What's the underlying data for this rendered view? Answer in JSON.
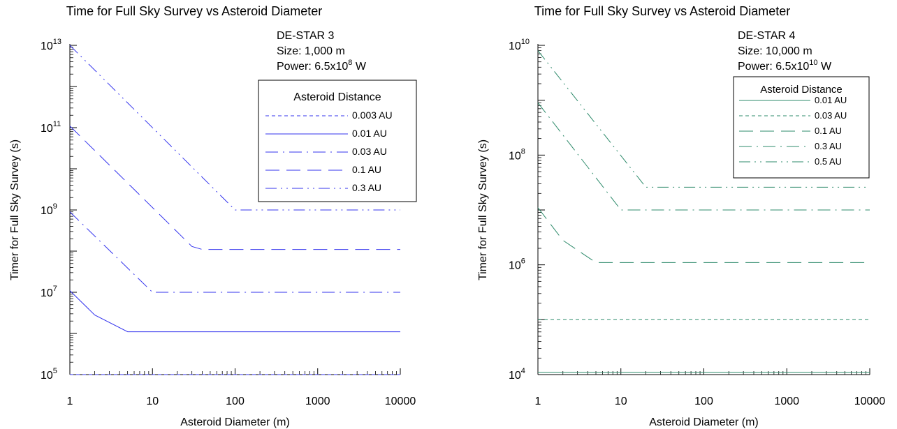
{
  "chart_data": [
    {
      "type": "line",
      "title": "Time for Full Sky Survey vs Asteroid Diameter",
      "xlabel": "Asteroid Diameter (m)",
      "ylabel": "Timer for Full Sky Survey (s)",
      "x_scale": "log",
      "y_scale": "log",
      "xlim": [
        1,
        10000
      ],
      "ylim": [
        100000,
        10000000000000
      ],
      "x_ticks": [
        "1",
        "10",
        "100",
        "1000",
        "10000"
      ],
      "y_ticks": [
        {
          "base": "10",
          "exp": "5"
        },
        {
          "base": "10",
          "exp": "7"
        },
        {
          "base": "10",
          "exp": "9"
        },
        {
          "base": "10",
          "exp": "11"
        },
        {
          "base": "10",
          "exp": "13"
        }
      ],
      "info": {
        "line1": "DE-STAR 3",
        "line2": "Size: 1,000 m",
        "power_prefix": "Power: 6.5x10",
        "power_exp": "8",
        "power_suffix": " W"
      },
      "legend_title": "Asteroid Distance",
      "legend_position": "top-right",
      "line_color": "#3333ee",
      "series": [
        {
          "name": "0.003 AU",
          "dash": "short-dash",
          "points": [
            [
              1,
              100000
            ],
            [
              10000,
              100000
            ]
          ]
        },
        {
          "name": "0.01 AU",
          "dash": "solid",
          "points": [
            [
              1,
              11000000
            ],
            [
              2,
              2800000
            ],
            [
              5,
              1100000
            ],
            [
              10000,
              1100000
            ]
          ]
        },
        {
          "name": "0.03 AU",
          "dash": "dash-dot",
          "points": [
            [
              1,
              900000000
            ],
            [
              10,
              10000000
            ],
            [
              10000,
              10000000
            ]
          ]
        },
        {
          "name": "0.1 AU",
          "dash": "long-dash",
          "points": [
            [
              1,
              110000000000
            ],
            [
              30,
              130000000
            ],
            [
              40,
              110000000
            ],
            [
              10000,
              110000000
            ]
          ]
        },
        {
          "name": "0.3 AU",
          "dash": "dash-dot-dot",
          "points": [
            [
              1,
              10000000000000
            ],
            [
              100,
              1000000000
            ],
            [
              10000,
              1000000000
            ]
          ]
        }
      ]
    },
    {
      "type": "line",
      "title": "Time for Full Sky Survey vs Asteroid Diameter",
      "xlabel": "Asteroid Diameter (m)",
      "ylabel": "Timer for Full Sky Survey (s)",
      "x_scale": "log",
      "y_scale": "log",
      "xlim": [
        1,
        10000
      ],
      "ylim": [
        10000,
        10000000000
      ],
      "x_ticks": [
        "1",
        "10",
        "100",
        "1000",
        "10000"
      ],
      "y_ticks": [
        {
          "base": "10",
          "exp": "4"
        },
        {
          "base": "10",
          "exp": "6"
        },
        {
          "base": "10",
          "exp": "8"
        },
        {
          "base": "10",
          "exp": "10"
        }
      ],
      "info": {
        "line1": "DE-STAR 4",
        "line2": "Size: 10,000 m",
        "power_prefix": "Power: 6.5x10",
        "power_exp": "10",
        "power_suffix": " W"
      },
      "legend_title": "Asteroid Distance",
      "legend_position": "top-right",
      "line_color": "#2e8b6b",
      "series": [
        {
          "name": "0.01 AU",
          "dash": "solid",
          "points": [
            [
              1,
              11000
            ],
            [
              10000,
              11000
            ]
          ]
        },
        {
          "name": "0.03 AU",
          "dash": "short-dash",
          "points": [
            [
              1,
              100000
            ],
            [
              10000,
              100000
            ]
          ]
        },
        {
          "name": "0.1 AU",
          "dash": "long-dash",
          "points": [
            [
              1,
              11000000
            ],
            [
              2,
              2800000
            ],
            [
              5,
              1100000
            ],
            [
              10000,
              1100000
            ]
          ]
        },
        {
          "name": "0.3 AU",
          "dash": "dash-dot",
          "points": [
            [
              1,
              900000000
            ],
            [
              10,
              10000000
            ],
            [
              10000,
              10000000
            ]
          ]
        },
        {
          "name": "0.5 AU",
          "dash": "dash-dot-dot",
          "points": [
            [
              1,
              8000000000
            ],
            [
              20,
              26000000
            ],
            [
              10000,
              26000000
            ]
          ]
        }
      ]
    }
  ]
}
